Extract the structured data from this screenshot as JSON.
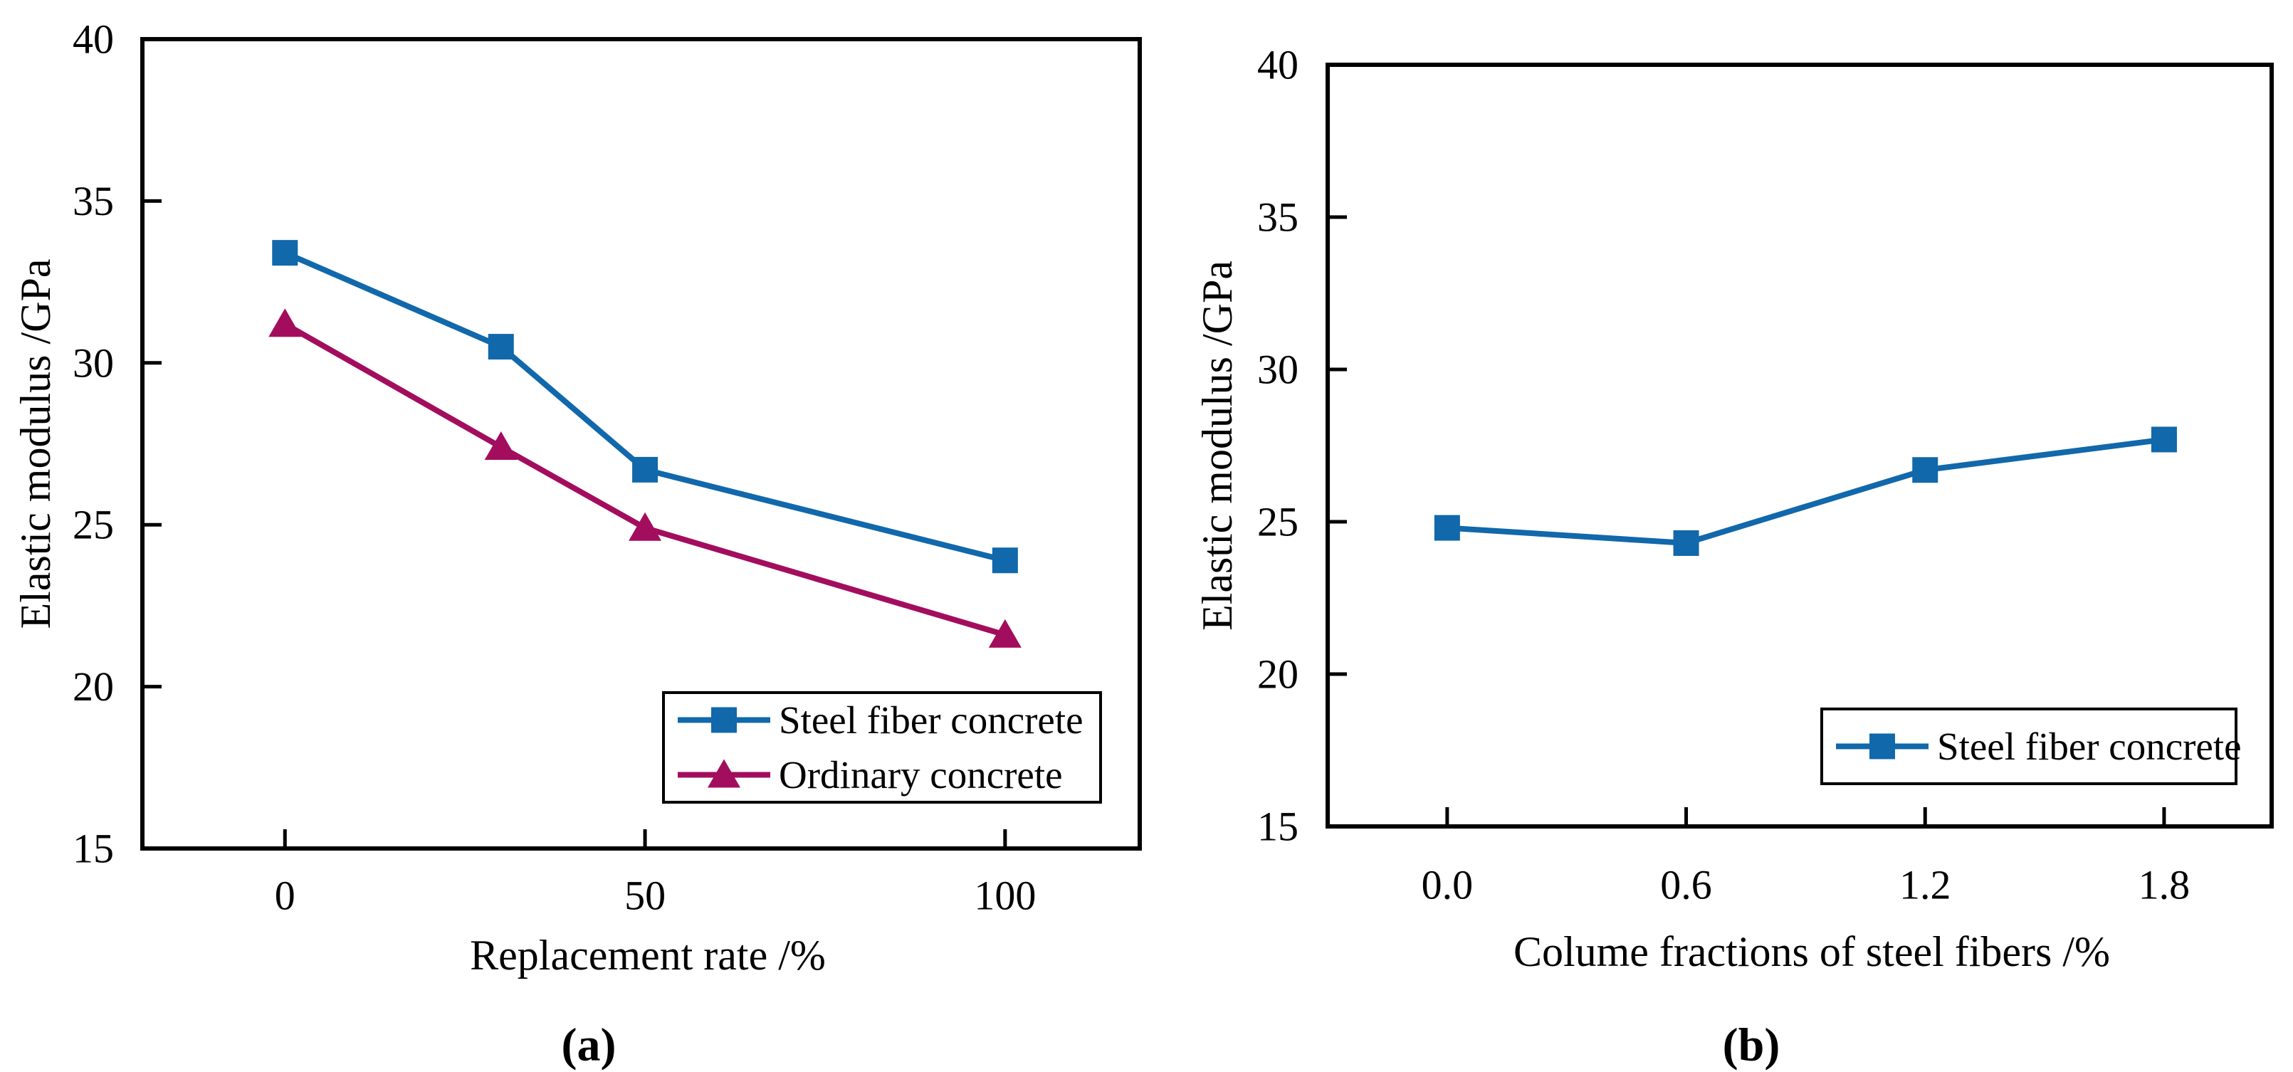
{
  "figure": {
    "background": "#ffffff"
  },
  "chart_data": [
    {
      "id": "a",
      "type": "line",
      "caption": "(a)",
      "xlabel": "Replacement rate /%",
      "ylabel": "Elastic modulus /GPa",
      "x_tick_labels": [
        "0",
        "50",
        "100"
      ],
      "x_tick_values": [
        0,
        50,
        100
      ],
      "y_tick_labels": [
        "15",
        "20",
        "25",
        "30",
        "35",
        "40"
      ],
      "y_tick_values": [
        15,
        20,
        25,
        30,
        35,
        40
      ],
      "xlim": [
        -19.8,
        118.7
      ],
      "ylim": [
        15,
        40
      ],
      "grid": false,
      "legend_position": "lower right",
      "series": [
        {
          "name": "Steel fiber concrete",
          "color": "#1168AB",
          "marker": "square",
          "x": [
            0,
            30,
            50,
            100
          ],
          "values": [
            33.4,
            30.5,
            26.7,
            23.9
          ]
        },
        {
          "name": "Ordinary concrete",
          "color": "#A30D5E",
          "marker": "triangle",
          "x": [
            0,
            30,
            50,
            100
          ],
          "values": [
            31.2,
            27.4,
            24.9,
            21.6
          ]
        }
      ]
    },
    {
      "id": "b",
      "type": "line",
      "caption": "(b)",
      "xlabel": "Colume fractions of steel fibers /%",
      "ylabel": "Elastic modulus /GPa",
      "x_tick_labels": [
        "0.0",
        "0.6",
        "1.2",
        "1.8"
      ],
      "x_tick_values": [
        0,
        0.6,
        1.2,
        1.8
      ],
      "y_tick_labels": [
        "15",
        "20",
        "25",
        "30",
        "35",
        "40"
      ],
      "y_tick_values": [
        15,
        20,
        25,
        30,
        35,
        40
      ],
      "xlim": [
        -0.3,
        2.07
      ],
      "ylim": [
        15,
        40
      ],
      "grid": false,
      "legend_position": "lower right",
      "series": [
        {
          "name": "Steel fiber concrete",
          "color": "#1168AB",
          "marker": "square",
          "x": [
            0,
            0.6,
            1.2,
            1.8
          ],
          "values": [
            24.8,
            24.3,
            26.7,
            27.7
          ]
        }
      ]
    }
  ]
}
